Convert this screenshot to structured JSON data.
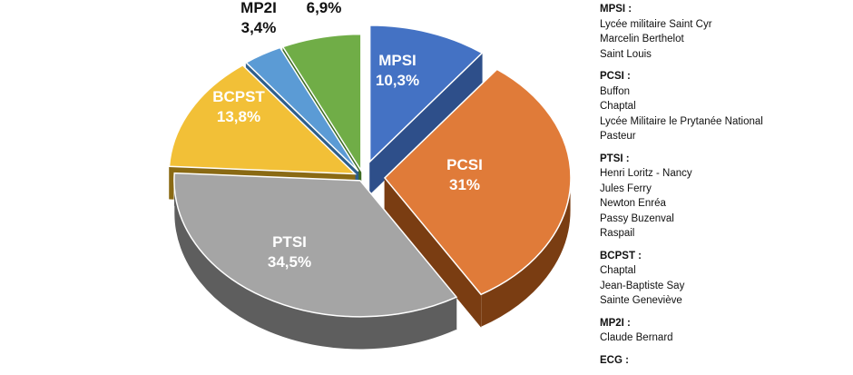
{
  "chart_data": {
    "type": "pie",
    "title": "",
    "slices": [
      {
        "label": "MPSI",
        "value": 10.3,
        "display": "10,3%",
        "color": "#4472C4",
        "side": "#2e4f8a"
      },
      {
        "label": "PCSI",
        "value": 31,
        "display": "31%",
        "color": "#E07B39",
        "side": "#7a3d12"
      },
      {
        "label": "PTSI",
        "value": 34.5,
        "display": "34,5%",
        "color": "#A5A5A5",
        "side": "#5e5e5e"
      },
      {
        "label": "BCPST",
        "value": 13.8,
        "display": "13,8%",
        "color": "#F2C037",
        "side": "#8a6a14"
      },
      {
        "label": "MP2I",
        "value": 3.4,
        "display": "3,4%",
        "color": "#5B9BD5",
        "side": "#2f5f8c"
      },
      {
        "label": "",
        "value": 6.9,
        "display": "6,9%",
        "color": "#70AD47",
        "side": "#3d6b22"
      }
    ]
  },
  "legend": {
    "groups": [
      {
        "title": "MPSI :",
        "items": [
          "Lycée militaire Saint Cyr",
          "Marcelin Berthelot",
          "Saint Louis"
        ]
      },
      {
        "title": "PCSI :",
        "items": [
          "Buffon",
          "Chaptal",
          "Lycée Militaire le Prytanée National",
          "Pasteur"
        ]
      },
      {
        "title": "PTSI :",
        "items": [
          "Henri Loritz - Nancy",
          "Jules Ferry",
          "Newton Enréa",
          "Passy Buzenval",
          "Raspail"
        ]
      },
      {
        "title": "BCPST :",
        "items": [
          "Chaptal",
          "Jean-Baptiste Say",
          "Sainte Geneviève"
        ]
      },
      {
        "title": "MP2I :",
        "items": [
          "Claude Bernard"
        ]
      },
      {
        "title": "ECG :",
        "items": []
      }
    ]
  }
}
